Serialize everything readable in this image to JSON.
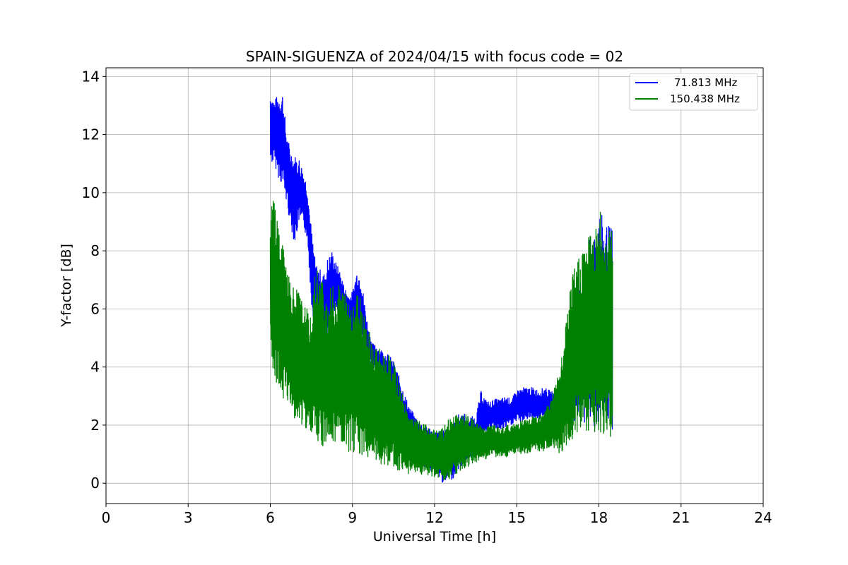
{
  "chart_data": {
    "type": "line",
    "title": "SPAIN-SIGUENZA of 2024/04/15 with focus code = 02",
    "xlabel": "Universal Time [h]",
    "ylabel": "Y-factor [dB]",
    "xlim": [
      0,
      24
    ],
    "ylim": [
      -0.7,
      14.3
    ],
    "xticks": [
      0,
      3,
      6,
      9,
      12,
      15,
      18,
      21,
      24
    ],
    "yticks": [
      0,
      2,
      4,
      6,
      8,
      10,
      12,
      14
    ],
    "grid": true,
    "legend_position": "top-right",
    "series": [
      {
        "name": "71.813 MHz",
        "color": "#0000ff",
        "x": [
          6.0,
          6.15,
          6.3,
          6.45,
          6.6,
          6.75,
          6.9,
          7.05,
          7.2,
          7.35,
          7.5,
          7.65,
          7.8,
          7.95,
          8.1,
          8.25,
          8.4,
          8.55,
          8.7,
          8.85,
          9.0,
          9.15,
          9.3,
          9.45,
          9.6,
          9.75,
          9.9,
          10.05,
          10.2,
          10.35,
          10.5,
          10.7,
          10.9,
          11.1,
          11.3,
          11.5,
          11.7,
          11.9,
          12.1,
          12.3,
          12.5,
          12.7,
          12.9,
          13.1,
          13.3,
          13.5,
          13.7,
          13.85,
          14.0,
          14.2,
          14.4,
          14.6,
          14.8,
          15.0,
          15.2,
          15.4,
          15.6,
          15.8,
          16.0,
          16.2,
          16.4,
          16.6,
          16.8,
          17.0,
          17.2,
          17.4,
          17.6,
          17.8,
          18.0,
          18.2,
          18.5
        ],
        "y_high": [
          13.5,
          13.2,
          13.4,
          13.5,
          12.0,
          11.5,
          11.3,
          11.2,
          10.8,
          10.3,
          8.8,
          7.6,
          7.4,
          7.2,
          7.8,
          8.0,
          7.6,
          7.3,
          6.8,
          6.5,
          6.6,
          7.3,
          7.2,
          6.2,
          5.2,
          4.8,
          4.7,
          4.6,
          4.5,
          4.4,
          4.2,
          3.7,
          3.1,
          2.6,
          2.3,
          2.1,
          2.0,
          1.9,
          1.8,
          1.8,
          1.9,
          2.2,
          2.4,
          2.4,
          2.3,
          2.3,
          3.2,
          2.9,
          2.8,
          2.9,
          2.9,
          3.0,
          2.9,
          3.2,
          3.3,
          3.3,
          3.3,
          3.2,
          3.3,
          3.2,
          3.1,
          3.7,
          4.8,
          5.6,
          6.4,
          7.2,
          8.2,
          8.8,
          9.5,
          9.0,
          8.8
        ],
        "y_low": [
          11.0,
          11.0,
          10.5,
          10.2,
          9.6,
          8.8,
          8.2,
          9.0,
          8.8,
          8.4,
          6.2,
          5.0,
          5.0,
          4.6,
          4.6,
          5.8,
          6.0,
          5.6,
          5.5,
          5.3,
          4.5,
          5.5,
          5.0,
          4.4,
          4.3,
          4.0,
          3.8,
          3.6,
          3.2,
          3.0,
          2.8,
          2.2,
          1.5,
          1.2,
          0.9,
          0.6,
          0.5,
          0.4,
          0.2,
          0.0,
          0.0,
          0.2,
          0.5,
          0.7,
          0.9,
          1.0,
          1.6,
          1.8,
          1.8,
          1.9,
          1.8,
          1.9,
          2.0,
          2.1,
          2.1,
          2.2,
          2.2,
          2.2,
          2.2,
          2.1,
          2.0,
          2.0,
          2.2,
          2.0,
          2.3,
          2.0,
          2.0,
          1.8,
          2.0,
          1.8,
          1.8
        ]
      },
      {
        "name": "150.438 MHz",
        "color": "#008000",
        "x": [
          6.0,
          6.15,
          6.3,
          6.45,
          6.6,
          6.75,
          6.9,
          7.05,
          7.2,
          7.35,
          7.5,
          7.65,
          7.8,
          7.95,
          8.1,
          8.25,
          8.4,
          8.55,
          8.7,
          8.85,
          9.0,
          9.15,
          9.3,
          9.45,
          9.6,
          9.75,
          9.9,
          10.05,
          10.2,
          10.35,
          10.5,
          10.7,
          10.9,
          11.1,
          11.3,
          11.5,
          11.7,
          11.9,
          12.1,
          12.3,
          12.5,
          12.7,
          12.9,
          13.1,
          13.3,
          13.5,
          13.7,
          13.85,
          14.0,
          14.2,
          14.4,
          14.6,
          14.8,
          15.0,
          15.2,
          15.4,
          15.6,
          15.8,
          16.0,
          16.2,
          16.4,
          16.6,
          16.8,
          17.0,
          17.2,
          17.4,
          17.6,
          17.8,
          18.0,
          18.2,
          18.5
        ],
        "y_high": [
          9.5,
          10.1,
          9.0,
          8.2,
          7.8,
          7.0,
          6.8,
          6.6,
          6.2,
          6.0,
          5.6,
          7.6,
          7.3,
          6.9,
          6.4,
          6.9,
          6.6,
          7.0,
          6.7,
          6.5,
          6.5,
          6.6,
          6.6,
          5.9,
          5.4,
          4.8,
          4.7,
          4.6,
          4.5,
          4.4,
          4.2,
          3.5,
          2.8,
          2.3,
          2.2,
          2.1,
          2.0,
          1.9,
          1.8,
          1.9,
          2.2,
          2.3,
          2.4,
          2.4,
          2.3,
          2.1,
          2.0,
          1.9,
          2.0,
          2.0,
          1.9,
          2.0,
          2.0,
          2.1,
          2.2,
          2.2,
          2.3,
          2.4,
          2.6,
          2.8,
          3.4,
          4.0,
          5.6,
          7.0,
          7.8,
          8.2,
          8.6,
          8.8,
          9.5,
          9.0,
          8.8
        ],
        "y_low": [
          4.8,
          3.3,
          3.2,
          2.8,
          2.8,
          2.6,
          2.2,
          2.1,
          1.9,
          1.8,
          1.6,
          1.4,
          1.3,
          1.2,
          1.1,
          1.3,
          1.2,
          1.2,
          1.1,
          1.0,
          1.1,
          1.0,
          1.0,
          0.9,
          0.9,
          0.8,
          0.8,
          0.6,
          0.6,
          0.6,
          0.5,
          0.4,
          0.4,
          0.3,
          0.3,
          0.3,
          0.3,
          0.2,
          0.1,
          0.1,
          0.1,
          0.2,
          0.4,
          0.5,
          0.6,
          0.7,
          0.8,
          0.8,
          0.9,
          0.9,
          0.9,
          0.9,
          1.0,
          1.0,
          1.0,
          1.0,
          1.1,
          1.1,
          1.1,
          1.2,
          1.1,
          0.9,
          1.2,
          1.5,
          1.5,
          1.7,
          1.8,
          1.5,
          1.7,
          1.5,
          1.5
        ]
      }
    ]
  }
}
